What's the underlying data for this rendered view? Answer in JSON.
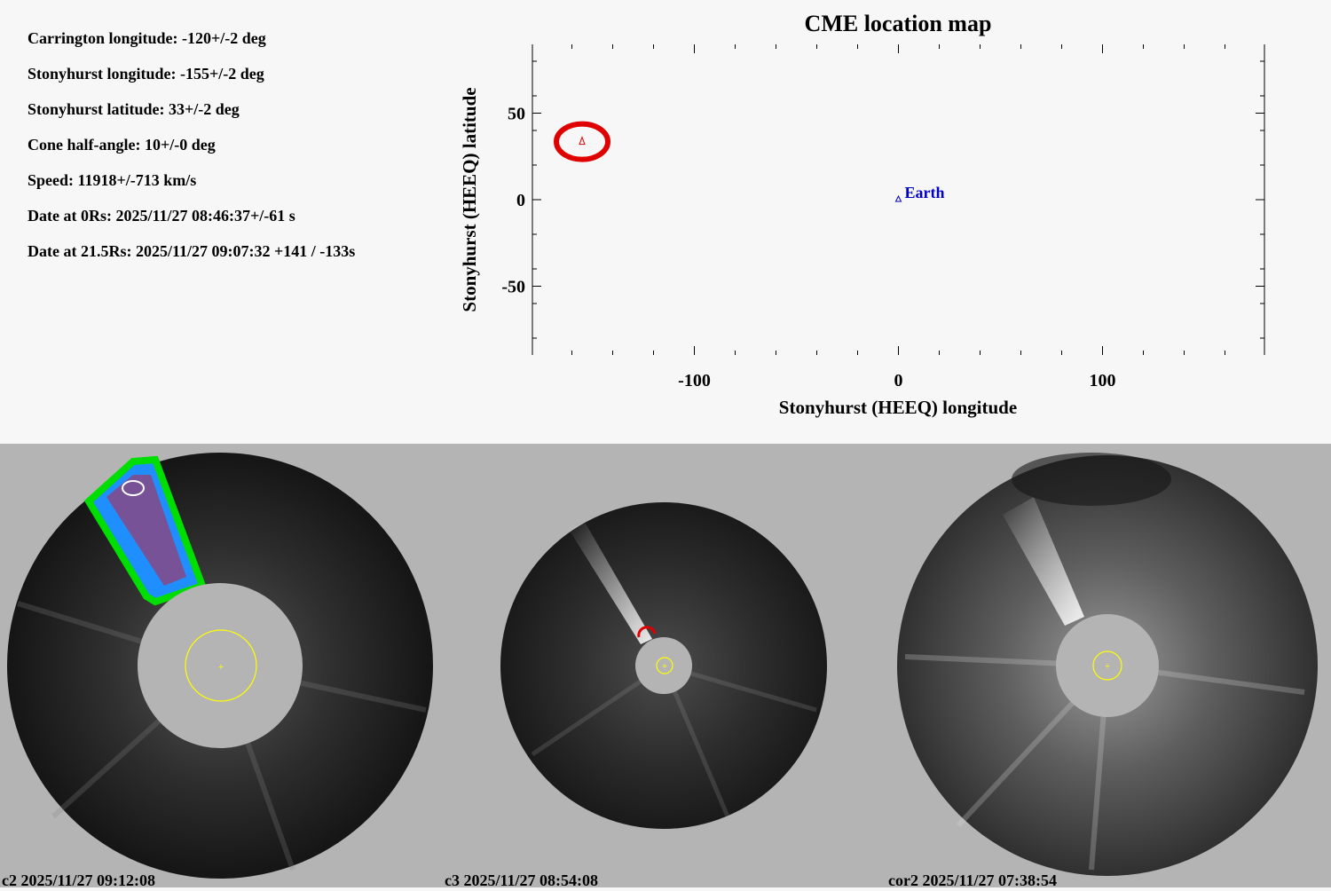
{
  "info_lines": [
    "Carrington longitude: -120+/-2 deg",
    "Stonyhurst longitude: -155+/-2 deg",
    "Stonyhurst latitude: 33+/-2 deg",
    "Cone half-angle: 10+/-0 deg",
    "Speed: 11918+/-713 km/s",
    "Date at 0Rs: 2025/11/27 08:46:37+/-61 s",
    "Date at 21.5Rs: 2025/11/27 09:07:32 +141 / -133s"
  ],
  "chart_data": {
    "type": "scatter",
    "title": "CME location map",
    "xlabel": "Stonyhurst (HEEQ) longitude",
    "ylabel": "Stonyhurst (HEEQ) latitude",
    "xlim": [
      -180,
      180
    ],
    "ylim": [
      -90,
      90
    ],
    "xticks": [
      -100,
      0,
      100
    ],
    "yticks": [
      -50,
      0,
      50
    ],
    "points": [
      {
        "label": "",
        "x": -155,
        "y": 33,
        "color": "#e00000",
        "marker": "triangle-ellipse"
      },
      {
        "label": "Earth",
        "x": 0,
        "y": 0,
        "color": "#0000c8",
        "marker": "triangle"
      }
    ]
  },
  "panels": [
    {
      "caption": "c2 2025/11/27 09:12:08"
    },
    {
      "caption": "c3 2025/11/27 08:54:08"
    },
    {
      "caption": "cor2 2025/11/27 07:38:54"
    }
  ],
  "colors": {
    "cme": "#e00000",
    "earth": "#0000c8",
    "sun": "#ffff00",
    "occulter": "#b4b4b4"
  }
}
